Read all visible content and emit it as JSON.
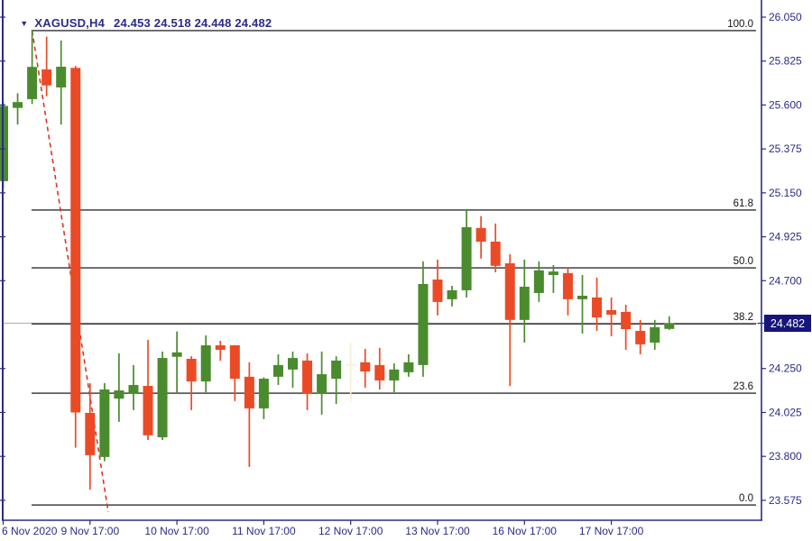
{
  "header": {
    "symbol": "XAGUSD,H4",
    "quote_line": "24.453 24.518 24.448 24.482"
  },
  "colors": {
    "bull": "#4a8b2e",
    "bear": "#ea4b26",
    "ghost": "#f6eedb",
    "axis_text": "#2b2b8a",
    "border": "#2b2b8a",
    "fib_line": "#000000",
    "fib_text": "#111111",
    "trendline": "#dd3522",
    "price_line": "#b9b9b9",
    "badge_bg": "#16157a",
    "badge_text": "#ffffff"
  },
  "chart_data": {
    "type": "candlestick",
    "symbol": "XAGUSD",
    "timeframe": "H4",
    "current_price": "24.482",
    "current_bar": {
      "o": "24.453",
      "h": "24.518",
      "l": "24.448",
      "c": "24.482"
    },
    "y_axis": {
      "tick_labels": [
        "26.050",
        "25.825",
        "25.600",
        "25.375",
        "25.150",
        "24.925",
        "24.700",
        "24.250",
        "24.025",
        "23.800",
        "23.575"
      ],
      "visible_range": [
        23.47,
        26.14
      ]
    },
    "x_axis": {
      "tick_labels": [
        {
          "bar": 0,
          "label": "6 Nov 2020",
          "align": "start"
        },
        {
          "bar": 6,
          "label": "9 Nov 17:00"
        },
        {
          "bar": 12,
          "label": "10 Nov 17:00"
        },
        {
          "bar": 18,
          "label": "11 Nov 17:00"
        },
        {
          "bar": 24,
          "label": "12 Nov 17:00"
        },
        {
          "bar": 30,
          "label": "13 Nov 17:00"
        },
        {
          "bar": 36,
          "label": "16 Nov 17:00"
        },
        {
          "bar": 42,
          "label": "17 Nov 17:00"
        }
      ]
    },
    "fibonacci": {
      "levels": [
        {
          "level": "100.0",
          "price": 25.981
        },
        {
          "level": "61.8",
          "price": 25.062
        },
        {
          "level": "50.0",
          "price": 24.766
        },
        {
          "level": "38.2",
          "price": 24.479
        },
        {
          "level": "23.6",
          "price": 24.124
        },
        {
          "level": "0.0",
          "price": 23.551
        }
      ],
      "trend_from": {
        "bar": 2,
        "price": 25.981
      },
      "trend_to": {
        "bar": 7.26,
        "price": 23.515
      }
    },
    "ghost_bars": [
      24
    ],
    "candles_ohlc": [
      [
        25.21,
        25.615,
        25.175,
        25.595
      ],
      [
        25.585,
        25.66,
        25.5,
        25.615
      ],
      [
        25.63,
        25.985,
        25.605,
        25.795
      ],
      [
        25.782,
        25.95,
        25.645,
        25.7
      ],
      [
        25.69,
        25.93,
        25.5,
        25.796
      ],
      [
        25.79,
        25.8,
        23.845,
        24.025
      ],
      [
        24.023,
        24.175,
        23.63,
        23.806
      ],
      [
        23.797,
        24.175,
        23.775,
        24.143
      ],
      [
        24.096,
        24.328,
        23.977,
        24.138
      ],
      [
        24.12,
        24.268,
        24.037,
        24.166
      ],
      [
        24.161,
        24.397,
        23.884,
        23.908
      ],
      [
        23.898,
        24.337,
        23.884,
        24.304
      ],
      [
        24.31,
        24.44,
        24.12,
        24.333
      ],
      [
        24.3,
        24.313,
        24.037,
        24.184
      ],
      [
        24.184,
        24.42,
        24.129,
        24.369
      ],
      [
        24.369,
        24.392,
        24.29,
        24.346
      ],
      [
        24.369,
        24.37,
        24.083,
        24.198
      ],
      [
        24.208,
        24.282,
        23.746,
        24.046
      ],
      [
        24.046,
        24.205,
        23.991,
        24.198
      ],
      [
        24.208,
        24.323,
        24.166,
        24.268
      ],
      [
        24.245,
        24.337,
        24.152,
        24.304
      ],
      [
        24.291,
        24.328,
        24.037,
        24.12
      ],
      [
        24.12,
        24.337,
        24.014,
        24.221
      ],
      [
        24.198,
        24.313,
        24.069,
        24.291
      ],
      [
        24.27,
        24.38,
        24.08,
        24.272
      ],
      [
        24.282,
        24.351,
        24.152,
        24.235
      ],
      [
        24.268,
        24.356,
        24.143,
        24.189
      ],
      [
        24.189,
        24.277,
        24.129,
        24.245
      ],
      [
        24.231,
        24.323,
        24.208,
        24.282
      ],
      [
        24.268,
        24.799,
        24.208,
        24.683
      ],
      [
        24.706,
        24.808,
        24.522,
        24.591
      ],
      [
        24.605,
        24.674,
        24.568,
        24.651
      ],
      [
        24.651,
        25.067,
        24.614,
        24.974
      ],
      [
        24.97,
        25.03,
        24.813,
        24.9
      ],
      [
        24.9,
        24.993,
        24.743,
        24.776
      ],
      [
        24.789,
        24.836,
        24.16,
        24.499
      ],
      [
        24.499,
        24.808,
        24.383,
        24.669
      ],
      [
        24.637,
        24.799,
        24.591,
        24.753
      ],
      [
        24.729,
        24.78,
        24.637,
        24.747
      ],
      [
        24.739,
        24.766,
        24.522,
        24.605
      ],
      [
        24.605,
        24.729,
        24.429,
        24.623
      ],
      [
        24.614,
        24.716,
        24.443,
        24.512
      ],
      [
        24.549,
        24.614,
        24.415,
        24.526
      ],
      [
        24.54,
        24.577,
        24.346,
        24.452
      ],
      [
        24.443,
        24.499,
        24.323,
        24.374
      ],
      [
        24.383,
        24.499,
        24.346,
        24.462
      ],
      [
        24.453,
        24.518,
        24.448,
        24.482
      ]
    ]
  }
}
